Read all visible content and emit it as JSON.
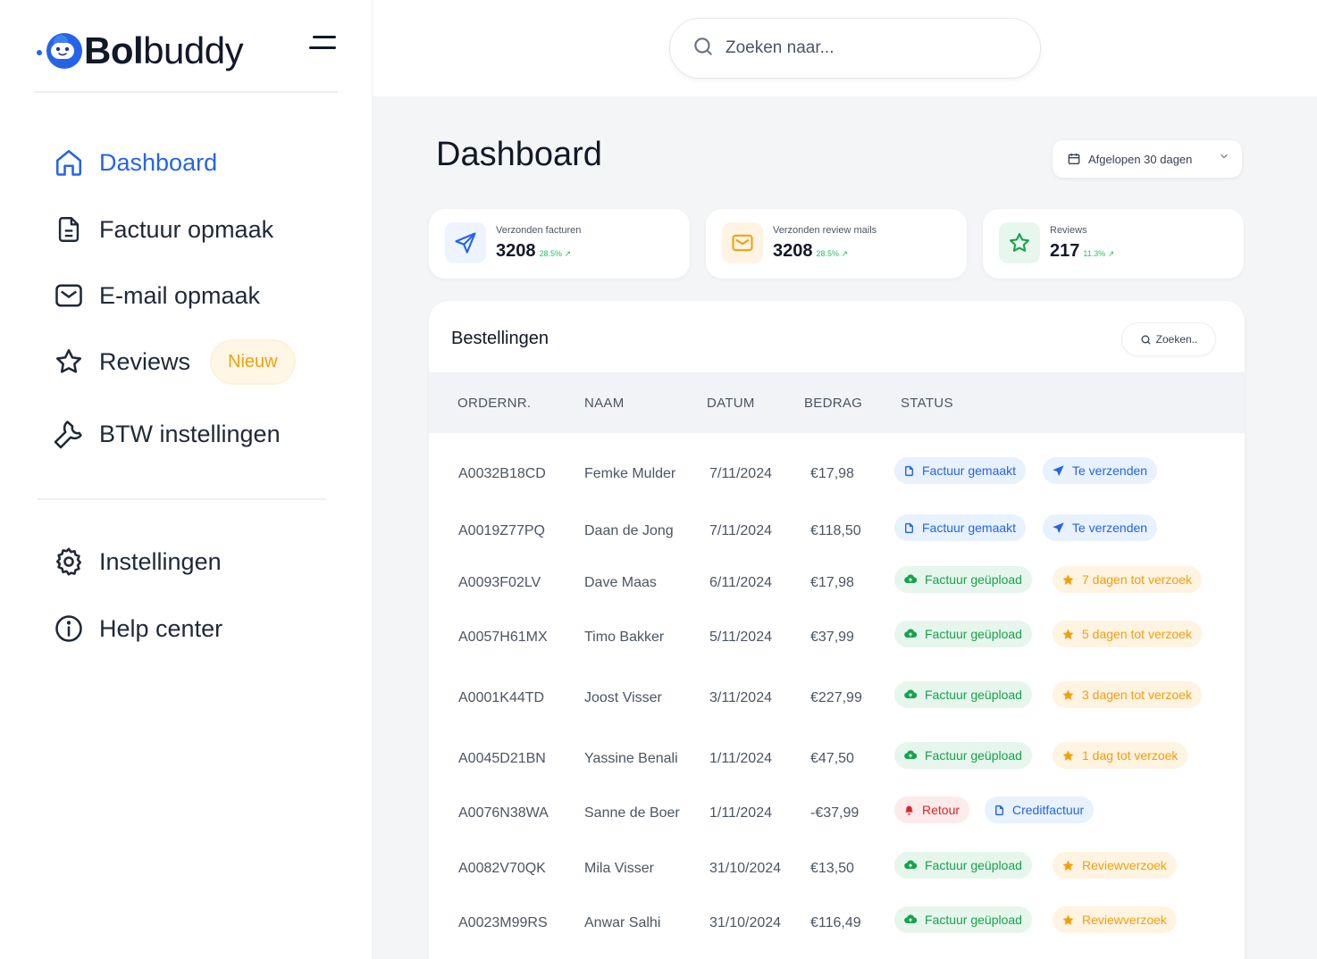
{
  "app": {
    "logo_bold": "Bol",
    "logo_light": "buddy",
    "brand_color": "#2563eb"
  },
  "sidebar": {
    "items": [
      {
        "label": "Dashboard",
        "icon": "home-icon",
        "active": true
      },
      {
        "label": "Factuur opmaak",
        "icon": "file-icon"
      },
      {
        "label": "E-mail opmaak",
        "icon": "mail-icon"
      },
      {
        "label": "Reviews",
        "icon": "star-icon",
        "badge": "Nieuw"
      },
      {
        "label": "BTW instellingen",
        "icon": "wrench-icon"
      }
    ],
    "bottom_items": [
      {
        "label": "Instellingen",
        "icon": "gear-icon"
      },
      {
        "label": "Help center",
        "icon": "info-icon"
      }
    ]
  },
  "search": {
    "placeholder": "Zoeken naar..."
  },
  "page": {
    "title": "Dashboard",
    "date_filter": "Afgelopen 30 dagen"
  },
  "stats": [
    {
      "label": "Verzonden facturen",
      "value": "3208",
      "change": "28.5%",
      "icon": "send-icon",
      "color": "#2563eb"
    },
    {
      "label": "Verzonden review mails",
      "value": "3208",
      "change": "28.5%",
      "icon": "mail-icon",
      "color": "#f59e0b"
    },
    {
      "label": "Reviews",
      "value": "217",
      "change": "11.3%",
      "icon": "star-icon",
      "color": "#16a34a"
    }
  ],
  "orders": {
    "title": "Bestellingen",
    "search_label": "Zoeken..",
    "columns": [
      "ORDERNR.",
      "NAAM",
      "DATUM",
      "BEDRAG",
      "STATUS"
    ],
    "rows": [
      {
        "order": "A0032B18CD",
        "name": "Femke Mulder",
        "date": "7/11/2024",
        "amount": "€17,98",
        "status1": "Factuur gemaakt",
        "status2": "Te verzenden"
      },
      {
        "order": "A0019Z77PQ",
        "name": "Daan de Jong",
        "date": "7/11/2024",
        "amount": "€118,50",
        "status1": "Factuur gemaakt",
        "status2": "Te verzenden"
      },
      {
        "order": "A0093F02LV",
        "name": "Dave Maas",
        "date": "6/11/2024",
        "amount": "€17,98",
        "status1": "Factuur geüpload",
        "status2": "7 dagen tot verzoek"
      },
      {
        "order": "A0057H61MX",
        "name": "Timo Bakker",
        "date": "5/11/2024",
        "amount": "€37,99",
        "status1": "Factuur geüpload",
        "status2": "5 dagen tot verzoek"
      },
      {
        "order": "A0001K44TD",
        "name": "Joost Visser",
        "date": "3/11/2024",
        "amount": "€227,99",
        "status1": "Factuur geüpload",
        "status2": "3 dagen tot verzoek"
      },
      {
        "order": "A0045D21BN",
        "name": "Yassine Benali",
        "date": "1/11/2024",
        "amount": "€47,50",
        "status1": "Factuur geüpload",
        "status2": "1 dag tot verzoek"
      },
      {
        "order": "A0076N38WA",
        "name": "Sanne de Boer",
        "date": "1/11/2024",
        "amount": "-€37,99",
        "status1": "Retour",
        "status2": "Creditfactuur"
      },
      {
        "order": "A0082V70QK",
        "name": "Mila Visser",
        "date": "31/10/2024",
        "amount": "€13,50",
        "status1": "Factuur geüpload",
        "status2": "Reviewverzoek"
      },
      {
        "order": "A0023M99RS",
        "name": "Anwar Salhi",
        "date": "31/10/2024",
        "amount": "€116,49",
        "status1": "Factuur geüpload",
        "status2": "Reviewverzoek"
      }
    ]
  }
}
